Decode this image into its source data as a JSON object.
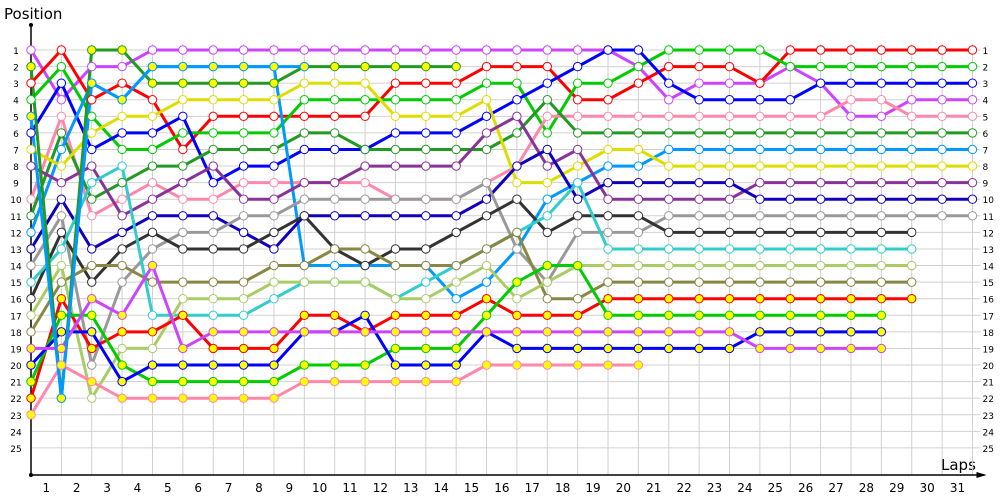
{
  "chart_data": {
    "type": "line",
    "title": "",
    "xlabel": "Laps",
    "ylabel": "Position",
    "x": [
      0,
      1,
      2,
      3,
      4,
      5,
      6,
      7,
      8,
      9,
      10,
      11,
      12,
      13,
      14,
      15,
      16,
      17,
      18,
      19,
      20,
      21,
      22,
      23,
      24,
      25,
      26,
      27,
      28,
      29,
      30,
      31
    ],
    "x_ticks": [
      1,
      2,
      3,
      4,
      5,
      6,
      7,
      8,
      9,
      10,
      11,
      12,
      13,
      14,
      15,
      16,
      17,
      18,
      19,
      20,
      21,
      22,
      23,
      24,
      25,
      26,
      27,
      28,
      29,
      30,
      31
    ],
    "y_ticks": [
      1,
      2,
      3,
      4,
      5,
      6,
      7,
      8,
      9,
      10,
      11,
      12,
      13,
      14,
      15,
      16,
      17,
      18,
      19,
      20,
      21,
      22,
      23,
      24,
      25
    ],
    "ylim": [
      1,
      25
    ],
    "y_inverted": true,
    "grid": true,
    "legend": "none",
    "series": [
      {
        "name": "purple",
        "color": "#cc44ff",
        "fill": "#ffffff",
        "values": [
          1,
          4,
          2,
          2,
          1,
          1,
          1,
          1,
          1,
          1,
          1,
          1,
          1,
          1,
          1,
          1,
          1,
          1,
          1,
          1,
          2,
          4,
          3,
          3,
          3,
          2,
          3,
          5,
          5,
          4,
          4,
          4
        ]
      },
      {
        "name": "red",
        "color": "#ff0000",
        "fill": "#ffffff",
        "values": [
          3,
          1,
          4,
          3,
          4,
          7,
          5,
          5,
          5,
          5,
          5,
          5,
          3,
          3,
          3,
          2,
          2,
          2,
          4,
          4,
          3,
          2,
          2,
          2,
          3,
          1,
          1,
          1,
          1,
          1,
          1,
          1
        ]
      },
      {
        "name": "green",
        "color": "#00cc00",
        "fill": "#ffffff",
        "values": [
          4,
          2,
          5,
          7,
          7,
          6,
          6,
          6,
          6,
          4,
          4,
          4,
          4,
          4,
          4,
          3,
          3,
          6,
          3,
          3,
          2,
          1,
          1,
          1,
          1,
          2,
          2,
          2,
          2,
          2,
          2,
          2
        ]
      },
      {
        "name": "blue",
        "color": "#0000ff",
        "fill": "#ffffff",
        "values": [
          6,
          3,
          7,
          6,
          6,
          5,
          9,
          8,
          8,
          7,
          7,
          7,
          6,
          6,
          6,
          5,
          4,
          3,
          2,
          1,
          1,
          3,
          4,
          4,
          4,
          4,
          3,
          3,
          3,
          3,
          3,
          3
        ]
      },
      {
        "name": "pink",
        "color": "#ff88aa",
        "fill": "#ffffff",
        "values": [
          10,
          5,
          11,
          10,
          9,
          10,
          10,
          9,
          9,
          9,
          9,
          9,
          10,
          10,
          10,
          9,
          8,
          5,
          5,
          5,
          5,
          5,
          5,
          5,
          5,
          5,
          5,
          4,
          4,
          5,
          5,
          5
        ]
      },
      {
        "name": "dark-green",
        "color": "#229922",
        "fill": "#ffffff",
        "values": [
          11,
          6,
          10,
          9,
          8,
          8,
          7,
          7,
          7,
          6,
          6,
          7,
          7,
          7,
          7,
          7,
          6,
          4,
          6,
          6,
          6,
          6,
          6,
          6,
          6,
          6,
          6,
          6,
          6,
          6,
          6,
          6
        ]
      },
      {
        "name": "sky-blue",
        "color": "#0099ff",
        "fill": "#ffffff",
        "values": [
          12,
          7,
          3,
          4,
          2,
          2,
          2,
          2,
          2,
          14,
          14,
          14,
          14,
          14,
          16,
          15,
          13,
          10,
          9,
          8,
          8,
          7,
          7,
          7,
          7,
          7,
          7,
          7,
          7,
          7,
          7,
          7
        ]
      },
      {
        "name": "yellow",
        "color": "#dddd00",
        "fill": "#ffffff",
        "values": [
          7,
          8,
          6,
          5,
          5,
          4,
          4,
          4,
          4,
          3,
          3,
          3,
          5,
          5,
          5,
          4,
          9,
          9,
          8,
          7,
          7,
          8,
          8,
          8,
          8,
          8,
          8,
          8,
          8,
          8,
          8,
          8
        ]
      },
      {
        "name": "dark-purple",
        "color": "#883399",
        "fill": "#ffffff",
        "values": [
          8,
          9,
          8,
          11,
          10,
          9,
          8,
          10,
          10,
          9,
          9,
          8,
          8,
          8,
          8,
          6,
          5,
          8,
          7,
          10,
          10,
          10,
          10,
          10,
          9,
          9,
          9,
          9,
          9,
          9,
          9,
          9
        ]
      },
      {
        "name": "navy",
        "color": "#1100bb",
        "fill": "#ffffff",
        "values": [
          13,
          10,
          13,
          12,
          11,
          11,
          11,
          12,
          13,
          11,
          11,
          11,
          11,
          11,
          11,
          10,
          8,
          7,
          10,
          9,
          9,
          9,
          9,
          9,
          10,
          10,
          10,
          10,
          10,
          10,
          10,
          10
        ]
      },
      {
        "name": "gray",
        "color": "#999999",
        "fill": "#ffffff",
        "values": [
          14,
          11,
          20,
          15,
          13,
          12,
          12,
          11,
          11,
          10,
          10,
          10,
          10,
          10,
          10,
          9,
          13,
          15,
          12,
          12,
          12,
          11,
          11,
          11,
          11,
          11,
          11,
          11,
          11,
          11,
          11,
          11
        ]
      },
      {
        "name": "charcoal",
        "color": "#333333",
        "fill": "#ffffff",
        "values": [
          16,
          12,
          15,
          13,
          12,
          13,
          13,
          13,
          12,
          11,
          13,
          14,
          13,
          13,
          12,
          11,
          10,
          12,
          11,
          11,
          11,
          12,
          12,
          12,
          12,
          12,
          12,
          12,
          12,
          12,
          null,
          null
        ]
      },
      {
        "name": "turquoise",
        "color": "#33cccc",
        "fill": "#ffffff",
        "values": [
          15,
          13,
          9,
          8,
          17,
          17,
          17,
          17,
          16,
          15,
          15,
          15,
          16,
          15,
          14,
          13,
          12,
          11,
          9,
          13,
          13,
          13,
          13,
          13,
          13,
          13,
          13,
          13,
          13,
          13,
          null,
          null
        ]
      },
      {
        "name": "olive",
        "color": "#888844",
        "fill": "#ffffff",
        "values": [
          18,
          15,
          14,
          14,
          15,
          15,
          15,
          15,
          14,
          14,
          13,
          13,
          14,
          14,
          14,
          13,
          12,
          16,
          16,
          15,
          15,
          15,
          15,
          15,
          15,
          15,
          15,
          15,
          15,
          15,
          null,
          null
        ]
      },
      {
        "name": "light-green",
        "color": "#aacc66",
        "fill": "#ffffff",
        "values": [
          17,
          14,
          22,
          19,
          19,
          16,
          16,
          16,
          15,
          15,
          15,
          15,
          16,
          16,
          15,
          14,
          16,
          15,
          14,
          14,
          14,
          14,
          14,
          14,
          14,
          14,
          14,
          14,
          14,
          14,
          null,
          null
        ]
      },
      {
        "name": "red-yellow",
        "color": "#ff0000",
        "fill": "#ffff00",
        "values": [
          22,
          16,
          19,
          18,
          18,
          17,
          19,
          19,
          19,
          17,
          17,
          18,
          17,
          17,
          17,
          16,
          17,
          17,
          17,
          16,
          16,
          16,
          16,
          16,
          16,
          16,
          16,
          16,
          16,
          16,
          null,
          null
        ]
      },
      {
        "name": "green-yellow",
        "color": "#00cc00",
        "fill": "#ffff00",
        "values": [
          21,
          17,
          17,
          20,
          21,
          21,
          21,
          21,
          21,
          20,
          20,
          20,
          19,
          19,
          19,
          17,
          15,
          14,
          14,
          17,
          17,
          17,
          17,
          17,
          17,
          17,
          17,
          17,
          17,
          null,
          null,
          null
        ]
      },
      {
        "name": "blue-yellow",
        "color": "#0000ff",
        "fill": "#ffff00",
        "values": [
          20,
          18,
          18,
          21,
          20,
          20,
          20,
          20,
          20,
          18,
          18,
          17,
          20,
          20,
          20,
          18,
          19,
          19,
          19,
          19,
          19,
          19,
          19,
          19,
          18,
          18,
          18,
          18,
          18,
          null,
          null,
          null
        ]
      },
      {
        "name": "purple-yellow",
        "color": "#cc44ff",
        "fill": "#ffff00",
        "values": [
          19,
          19,
          16,
          17,
          14,
          19,
          18,
          18,
          18,
          18,
          18,
          18,
          18,
          18,
          18,
          18,
          18,
          18,
          18,
          18,
          18,
          18,
          18,
          18,
          19,
          19,
          19,
          19,
          19,
          null,
          null,
          null
        ]
      },
      {
        "name": "pink-yellow",
        "color": "#ff88aa",
        "fill": "#ffff00",
        "values": [
          23,
          20,
          21,
          22,
          22,
          22,
          22,
          22,
          22,
          21,
          21,
          21,
          21,
          21,
          21,
          20,
          20,
          20,
          20,
          20,
          20,
          null,
          null,
          null,
          null,
          null,
          null,
          null,
          null,
          null,
          null,
          null
        ]
      },
      {
        "name": "dkgreen-yellow",
        "color": "#229922",
        "fill": "#ffff00",
        "values": [
          2,
          22,
          1,
          1,
          3,
          3,
          3,
          3,
          3,
          2,
          2,
          2,
          2,
          2,
          2,
          null,
          null,
          null,
          null,
          null,
          null,
          null,
          null,
          null,
          null,
          null,
          null,
          null,
          null,
          null,
          null,
          null
        ]
      },
      {
        "name": "skyblue-yellow",
        "color": "#0099ff",
        "fill": "#ffff00",
        "values": [
          5,
          22,
          3,
          4,
          2,
          2,
          2,
          2,
          2,
          2,
          null,
          null,
          null,
          null,
          null,
          null,
          null,
          null,
          null,
          null,
          null,
          null,
          null,
          null,
          null,
          null,
          null,
          null,
          null,
          null,
          null,
          null
        ]
      }
    ]
  },
  "axis": {
    "y_label": "Position",
    "x_label": "Laps"
  }
}
